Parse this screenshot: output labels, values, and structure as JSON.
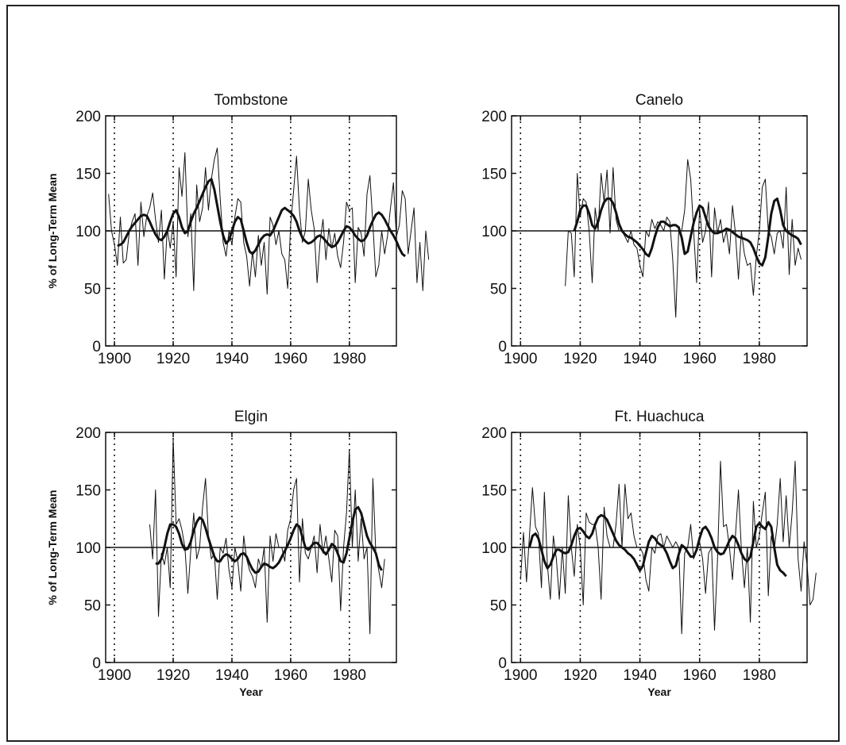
{
  "chart_data": [
    {
      "type": "line",
      "title": "Tombstone",
      "xlabel": "",
      "ylabel": "% of Long-Term Mean",
      "xlim": [
        1897,
        1996
      ],
      "ylim": [
        0,
        200
      ],
      "xticks": [
        "1900",
        "1920",
        "1940",
        "1960",
        "1980"
      ],
      "yticks": [
        "0",
        "50",
        "100",
        "150",
        "200"
      ],
      "reference_line": 100,
      "vertical_dotted_lines": [
        1900,
        1920,
        1940,
        1960,
        1980
      ],
      "series": [
        {
          "style": "annual",
          "x0": 1898,
          "values": [
            132,
            100,
            88,
            70,
            112,
            72,
            75,
            98,
            108,
            115,
            70,
            125,
            95,
            113,
            120,
            133,
            110,
            90,
            118,
            58,
            102,
            85,
            108,
            60,
            155,
            130,
            168,
            95,
            115,
            48,
            140,
            108,
            120,
            155,
            118,
            145,
            162,
            172,
            128,
            90,
            78,
            100,
            88,
            112,
            128,
            125,
            90,
            78,
            52,
            82,
            60,
            96,
            70,
            90,
            45,
            112,
            105,
            88,
            100,
            80,
            75,
            50,
            105,
            135,
            165,
            118,
            90,
            100,
            145,
            118,
            102,
            55,
            90,
            110,
            75,
            102,
            85,
            98,
            78,
            68,
            90,
            125,
            118,
            120,
            55,
            103,
            98,
            78,
            132,
            148,
            106,
            60,
            70,
            100,
            80,
            96,
            120,
            142,
            95,
            105,
            135,
            128,
            80,
            100,
            120,
            55,
            90,
            48,
            100,
            75
          ]
        },
        {
          "style": "smoothed",
          "x0": 1901,
          "values": [
            87,
            88,
            90,
            95,
            100,
            104,
            107,
            110,
            113,
            114,
            113,
            108,
            102,
            97,
            93,
            92,
            95,
            100,
            108,
            115,
            118,
            112,
            103,
            98,
            100,
            108,
            115,
            120,
            126,
            132,
            138,
            143,
            145,
            136,
            122,
            108,
            96,
            89,
            92,
            100,
            108,
            112,
            110,
            100,
            90,
            82,
            80,
            83,
            88,
            93,
            96,
            97,
            96,
            100,
            106,
            112,
            118,
            120,
            118,
            116,
            113,
            108,
            100,
            94,
            91,
            89,
            90,
            92,
            95,
            96,
            94,
            91,
            88,
            86,
            87,
            90,
            95,
            100,
            104,
            103,
            100,
            96,
            93,
            91,
            92,
            96,
            103,
            109,
            114,
            116,
            114,
            110,
            105,
            100,
            96,
            91,
            85,
            80,
            78
          ]
        }
      ]
    },
    {
      "type": "line",
      "title": "Canelo",
      "xlabel": "",
      "ylabel": "",
      "xlim": [
        1897,
        1996
      ],
      "ylim": [
        0,
        200
      ],
      "xticks": [
        "1900",
        "1920",
        "1940",
        "1960",
        "1980"
      ],
      "yticks": [
        "0",
        "50",
        "100",
        "150",
        "200"
      ],
      "reference_line": 100,
      "vertical_dotted_lines": [
        1900,
        1920,
        1940,
        1960,
        1980
      ],
      "series": [
        {
          "style": "annual",
          "x0": 1915,
          "values": [
            52,
            100,
            98,
            60,
            150,
            112,
            128,
            125,
            100,
            55,
            120,
            100,
            150,
            125,
            153,
            98,
            155,
            110,
            100,
            100,
            95,
            90,
            100,
            88,
            85,
            70,
            60,
            100,
            95,
            110,
            102,
            108,
            105,
            100,
            112,
            108,
            75,
            25,
            100,
            100,
            118,
            162,
            145,
            100,
            55,
            120,
            90,
            100,
            125,
            60,
            120,
            98,
            110,
            90,
            100,
            80,
            122,
            98,
            58,
            100,
            80,
            70,
            72,
            44,
            78,
            100,
            138,
            145,
            100,
            95,
            80,
            98,
            100,
            85,
            138,
            62,
            110,
            70,
            85,
            75
          ]
        },
        {
          "style": "smoothed",
          "x0": 1918,
          "values": [
            100,
            108,
            118,
            122,
            122,
            115,
            105,
            102,
            108,
            118,
            125,
            128,
            128,
            124,
            116,
            106,
            100,
            97,
            95,
            94,
            92,
            90,
            87,
            84,
            80,
            78,
            85,
            95,
            103,
            108,
            108,
            106,
            104,
            105,
            105,
            103,
            94,
            80,
            82,
            95,
            107,
            116,
            122,
            120,
            112,
            104,
            100,
            98,
            98,
            99,
            100,
            102,
            101,
            99,
            97,
            95,
            94,
            93,
            92,
            90,
            85,
            78,
            72,
            70,
            77,
            95,
            115,
            126,
            128,
            118,
            105,
            100,
            98,
            96,
            95,
            93,
            88
          ]
        }
      ]
    },
    {
      "type": "line",
      "title": "Elgin",
      "xlabel": "Year",
      "ylabel": "% of Long-Term Mean",
      "xlim": [
        1897,
        1996
      ],
      "ylim": [
        0,
        200
      ],
      "xticks": [
        "1900",
        "1920",
        "1940",
        "1960",
        "1980"
      ],
      "yticks": [
        "0",
        "50",
        "100",
        "150",
        "200"
      ],
      "reference_line": 100,
      "vertical_dotted_lines": [
        1900,
        1920,
        1940,
        1960,
        1980
      ],
      "series": [
        {
          "style": "annual",
          "x0": 1912,
          "values": [
            120,
            90,
            150,
            40,
            95,
            85,
            100,
            65,
            195,
            120,
            125,
            115,
            100,
            60,
            98,
            130,
            90,
            100,
            135,
            160,
            110,
            90,
            95,
            55,
            100,
            95,
            108,
            80,
            65,
            100,
            88,
            62,
            110,
            90,
            80,
            75,
            65,
            90,
            82,
            100,
            35,
            110,
            88,
            112,
            100,
            100,
            88,
            115,
            125,
            150,
            160,
            70,
            125,
            95,
            90,
            100,
            110,
            78,
            120,
            95,
            110,
            90,
            70,
            115,
            110,
            45,
            100,
            130,
            185,
            100,
            150,
            88,
            125,
            90,
            100,
            25,
            160,
            95,
            80,
            65,
            90
          ]
        },
        {
          "style": "smoothed",
          "x0": 1914,
          "values": [
            86,
            86,
            90,
            100,
            112,
            120,
            120,
            118,
            112,
            103,
            98,
            99,
            105,
            115,
            122,
            126,
            124,
            117,
            108,
            100,
            92,
            88,
            88,
            92,
            94,
            93,
            90,
            88,
            90,
            94,
            95,
            92,
            86,
            81,
            78,
            79,
            83,
            86,
            85,
            83,
            82,
            84,
            87,
            92,
            97,
            102,
            108,
            115,
            120,
            118,
            109,
            100,
            98,
            101,
            104,
            104,
            101,
            97,
            94,
            98,
            103,
            101,
            95,
            88,
            87,
            95,
            108,
            122,
            133,
            135,
            130,
            120,
            110,
            104,
            100,
            95,
            85,
            80
          ]
        }
      ]
    },
    {
      "type": "line",
      "title": "Ft. Huachuca",
      "xlabel": "Year",
      "ylabel": "",
      "xlim": [
        1897,
        1996
      ],
      "ylim": [
        0,
        200
      ],
      "xticks": [
        "1900",
        "1920",
        "1940",
        "1960",
        "1980"
      ],
      "yticks": [
        "0",
        "50",
        "100",
        "150",
        "200"
      ],
      "reference_line": 100,
      "vertical_dotted_lines": [
        1900,
        1920,
        1940,
        1960,
        1980
      ],
      "series": [
        {
          "style": "annual",
          "x0": 1900,
          "values": [
            72,
            113,
            70,
            110,
            152,
            118,
            112,
            65,
            148,
            85,
            55,
            110,
            90,
            55,
            100,
            60,
            145,
            100,
            75,
            120,
            100,
            50,
            130,
            122,
            120,
            120,
            100,
            55,
            135,
            110,
            100,
            100,
            120,
            155,
            100,
            155,
            125,
            130,
            110,
            100,
            100,
            95,
            72,
            62,
            100,
            95,
            110,
            112,
            100,
            110,
            105,
            100,
            105,
            100,
            25,
            95,
            100,
            120,
            90,
            100,
            105,
            90,
            60,
            95,
            100,
            28,
            90,
            175,
            118,
            120,
            100,
            72,
            110,
            150,
            98,
            65,
            100,
            35,
            140,
            100,
            110,
            130,
            148,
            58,
            110,
            98,
            120,
            160,
            105,
            145,
            100,
            130,
            175,
            90,
            62,
            105,
            85,
            50,
            55,
            78
          ]
        },
        {
          "style": "smoothed",
          "x0": 1903,
          "values": [
            100,
            110,
            112,
            108,
            98,
            88,
            82,
            85,
            92,
            98,
            98,
            96,
            95,
            96,
            102,
            110,
            116,
            117,
            114,
            110,
            108,
            112,
            120,
            126,
            128,
            127,
            124,
            118,
            112,
            106,
            102,
            100,
            98,
            95,
            93,
            90,
            85,
            80,
            84,
            95,
            105,
            110,
            108,
            104,
            102,
            100,
            95,
            88,
            82,
            84,
            94,
            102,
            100,
            96,
            92,
            92,
            98,
            108,
            116,
            118,
            114,
            108,
            100,
            96,
            94,
            95,
            100,
            106,
            110,
            108,
            102,
            95,
            90,
            88,
            92,
            105,
            118,
            121,
            118,
            116,
            122,
            118,
            100,
            85,
            80,
            78,
            75
          ]
        }
      ]
    }
  ]
}
